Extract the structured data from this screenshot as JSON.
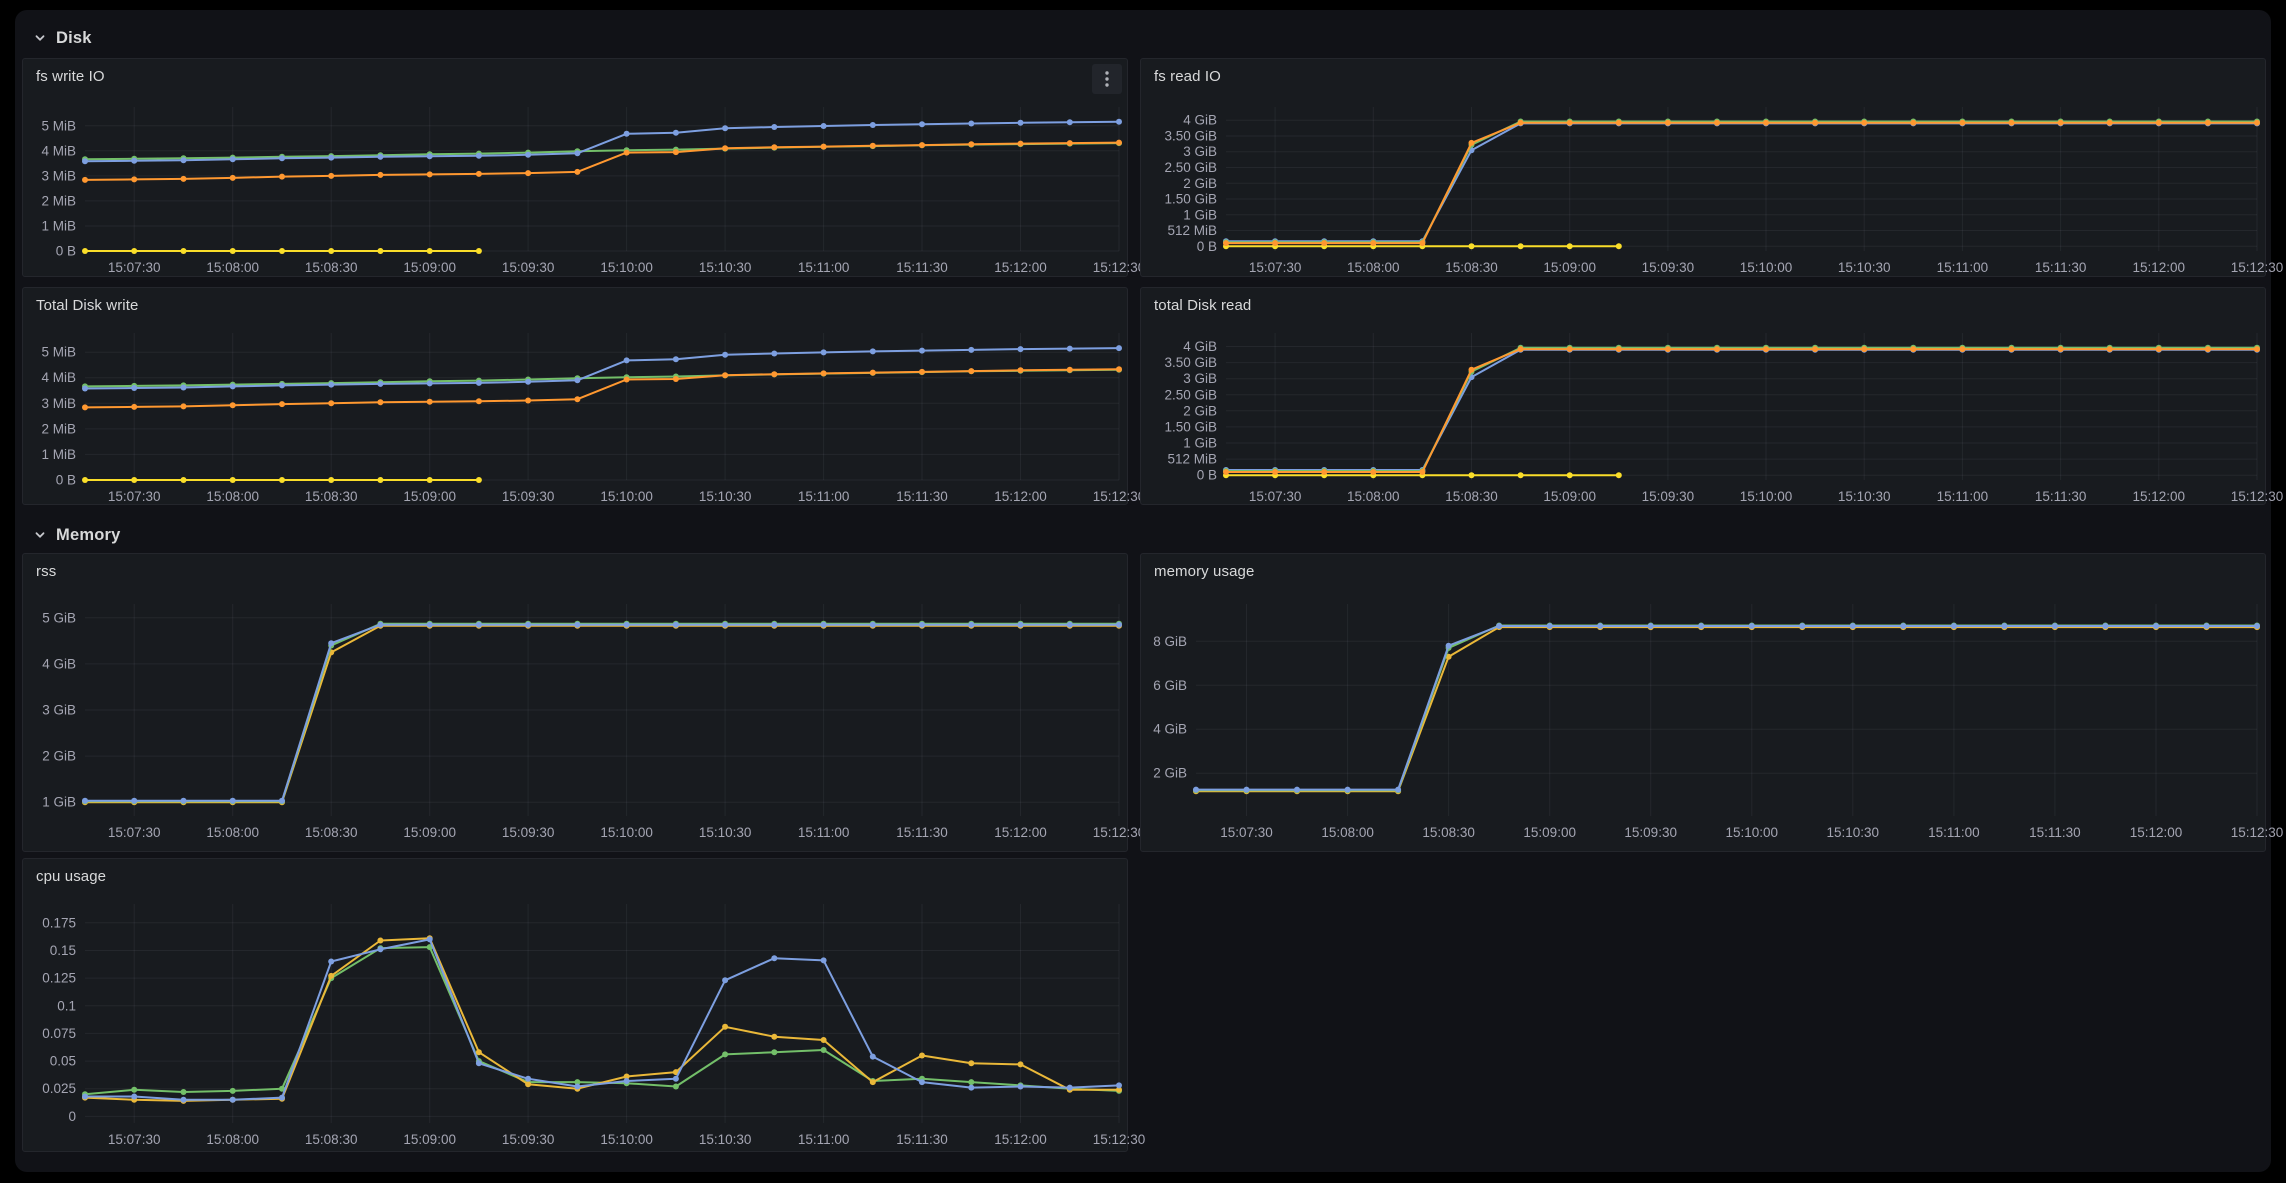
{
  "rows": [
    {
      "label": "Disk"
    },
    {
      "label": "Memory"
    }
  ],
  "colors": {
    "background": "#000000",
    "canvas": "#111217",
    "panel_background": "#181B1F",
    "panel_border": "#24262C",
    "green": "#73BF69",
    "yellow_bright": "#FADE2A",
    "yellow_gold": "#EAB839",
    "blue": "#7D9FE0",
    "orange": "#FF9830"
  },
  "chart_data": {
    "type": "line",
    "x_axis_note": "time of day, points every 15s",
    "x_seconds": [
      435,
      450,
      465,
      480,
      495,
      510,
      525,
      540,
      555,
      570,
      585,
      600,
      615,
      630,
      645,
      660,
      675,
      690,
      705,
      720,
      735,
      750
    ],
    "x_tick_seconds": [
      450,
      480,
      510,
      540,
      570,
      600,
      630,
      660,
      690,
      720,
      750
    ],
    "x_tick_labels": [
      "15:07:30",
      "15:08:00",
      "15:08:30",
      "15:09:00",
      "15:09:30",
      "15:10:00",
      "15:10:30",
      "15:11:00",
      "15:11:30",
      "15:12:00",
      "15:12:30"
    ],
    "charts": [
      {
        "id": "fs_write_io",
        "title": "fs write IO",
        "unit": "MiB",
        "ylim": [
          0,
          5.75
        ],
        "y_ticks": [
          {
            "v": 0,
            "label": "0 B"
          },
          {
            "v": 1,
            "label": "1 MiB"
          },
          {
            "v": 2,
            "label": "2 MiB"
          },
          {
            "v": 3,
            "label": "3 MiB"
          },
          {
            "v": 4,
            "label": "4 MiB"
          },
          {
            "v": 5,
            "label": "5 MiB"
          }
        ],
        "series": [
          {
            "name": "yellow",
            "color": "#FADE2A",
            "values": [
              0,
              0,
              0,
              0,
              0,
              0,
              0,
              0,
              0
            ]
          },
          {
            "name": "green",
            "color": "#73BF69",
            "values": [
              3.66,
              3.68,
              3.7,
              3.73,
              3.76,
              3.79,
              3.82,
              3.86,
              3.89,
              3.93,
              3.98,
              4.02,
              4.05,
              4.09,
              4.13,
              4.16,
              4.19,
              4.22,
              4.25,
              4.27,
              4.29,
              4.31
            ]
          },
          {
            "name": "blue",
            "color": "#7D9FE0",
            "values": [
              3.58,
              3.6,
              3.62,
              3.66,
              3.7,
              3.73,
              3.76,
              3.78,
              3.8,
              3.84,
              3.9,
              4.68,
              4.72,
              4.9,
              4.95,
              4.99,
              5.03,
              5.06,
              5.09,
              5.12,
              5.14,
              5.16
            ]
          },
          {
            "name": "orange",
            "color": "#FF9830",
            "values": [
              2.84,
              2.86,
              2.88,
              2.92,
              2.97,
              3.0,
              3.04,
              3.06,
              3.08,
              3.11,
              3.16,
              3.93,
              3.95,
              4.1,
              4.14,
              4.17,
              4.2,
              4.23,
              4.26,
              4.29,
              4.31,
              4.33
            ]
          }
        ]
      },
      {
        "id": "fs_read_io",
        "title": "fs read IO",
        "unit": "GiB",
        "ylim": [
          -0.15,
          4.42
        ],
        "y_ticks": [
          {
            "v": 0,
            "label": "0 B"
          },
          {
            "v": 0.5,
            "label": "512 MiB"
          },
          {
            "v": 1,
            "label": "1 GiB"
          },
          {
            "v": 1.5,
            "label": "1.50 GiB"
          },
          {
            "v": 2,
            "label": "2 GiB"
          },
          {
            "v": 2.5,
            "label": "2.50 GiB"
          },
          {
            "v": 3,
            "label": "3 GiB"
          },
          {
            "v": 3.5,
            "label": "3.50 GiB"
          },
          {
            "v": 4,
            "label": "4 GiB"
          }
        ],
        "series": [
          {
            "name": "yellow",
            "color": "#FADE2A",
            "values": [
              0,
              0,
              0,
              0,
              0,
              0,
              0,
              0,
              0
            ]
          },
          {
            "name": "blue",
            "color": "#7D9FE0",
            "values": [
              0.16,
              0.16,
              0.16,
              0.16,
              0.16,
              3.05,
              3.9,
              3.9,
              3.9,
              3.9,
              3.9,
              3.9,
              3.9,
              3.9,
              3.9,
              3.9,
              3.9,
              3.9,
              3.9,
              3.9,
              3.9,
              3.9
            ]
          },
          {
            "name": "green",
            "color": "#73BF69",
            "values": [
              0.13,
              0.13,
              0.13,
              0.13,
              0.13,
              3.22,
              3.96,
              3.96,
              3.96,
              3.96,
              3.96,
              3.96,
              3.96,
              3.96,
              3.96,
              3.96,
              3.96,
              3.96,
              3.96,
              3.96,
              3.96,
              3.96
            ]
          },
          {
            "name": "orange",
            "color": "#FF9830",
            "values": [
              0.1,
              0.1,
              0.1,
              0.1,
              0.1,
              3.28,
              3.92,
              3.92,
              3.92,
              3.92,
              3.92,
              3.92,
              3.92,
              3.92,
              3.92,
              3.92,
              3.92,
              3.92,
              3.92,
              3.92,
              3.92,
              3.92
            ]
          }
        ]
      },
      {
        "id": "total_disk_write",
        "title": "Total Disk write",
        "unit": "MiB",
        "ylim": [
          0,
          5.75
        ],
        "y_ticks": [
          {
            "v": 0,
            "label": "0 B"
          },
          {
            "v": 1,
            "label": "1 MiB"
          },
          {
            "v": 2,
            "label": "2 MiB"
          },
          {
            "v": 3,
            "label": "3 MiB"
          },
          {
            "v": 4,
            "label": "4 MiB"
          },
          {
            "v": 5,
            "label": "5 MiB"
          }
        ],
        "series": [
          {
            "name": "yellow",
            "color": "#FADE2A",
            "values": [
              0,
              0,
              0,
              0,
              0,
              0,
              0,
              0,
              0
            ]
          },
          {
            "name": "green",
            "color": "#73BF69",
            "values": [
              3.66,
              3.68,
              3.7,
              3.73,
              3.76,
              3.79,
              3.82,
              3.86,
              3.89,
              3.93,
              3.98,
              4.02,
              4.05,
              4.09,
              4.13,
              4.16,
              4.19,
              4.22,
              4.25,
              4.27,
              4.29,
              4.31
            ]
          },
          {
            "name": "blue",
            "color": "#7D9FE0",
            "values": [
              3.58,
              3.6,
              3.62,
              3.66,
              3.7,
              3.73,
              3.76,
              3.78,
              3.8,
              3.84,
              3.9,
              4.68,
              4.72,
              4.9,
              4.95,
              4.99,
              5.03,
              5.06,
              5.09,
              5.12,
              5.14,
              5.16
            ]
          },
          {
            "name": "orange",
            "color": "#FF9830",
            "values": [
              2.84,
              2.86,
              2.88,
              2.92,
              2.97,
              3.0,
              3.04,
              3.06,
              3.08,
              3.11,
              3.16,
              3.93,
              3.95,
              4.1,
              4.14,
              4.17,
              4.2,
              4.23,
              4.26,
              4.29,
              4.31,
              4.33
            ]
          }
        ]
      },
      {
        "id": "total_disk_read",
        "title": "total Disk read",
        "unit": "GiB",
        "ylim": [
          -0.15,
          4.42
        ],
        "y_ticks": [
          {
            "v": 0,
            "label": "0 B"
          },
          {
            "v": 0.5,
            "label": "512 MiB"
          },
          {
            "v": 1,
            "label": "1 GiB"
          },
          {
            "v": 1.5,
            "label": "1.50 GiB"
          },
          {
            "v": 2,
            "label": "2 GiB"
          },
          {
            "v": 2.5,
            "label": "2.50 GiB"
          },
          {
            "v": 3,
            "label": "3 GiB"
          },
          {
            "v": 3.5,
            "label": "3.50 GiB"
          },
          {
            "v": 4,
            "label": "4 GiB"
          }
        ],
        "series": [
          {
            "name": "yellow",
            "color": "#FADE2A",
            "values": [
              0,
              0,
              0,
              0,
              0,
              0,
              0,
              0,
              0
            ]
          },
          {
            "name": "blue",
            "color": "#7D9FE0",
            "values": [
              0.16,
              0.16,
              0.16,
              0.16,
              0.16,
              3.05,
              3.9,
              3.9,
              3.9,
              3.9,
              3.9,
              3.9,
              3.9,
              3.9,
              3.9,
              3.9,
              3.9,
              3.9,
              3.9,
              3.9,
              3.9,
              3.9
            ]
          },
          {
            "name": "green",
            "color": "#73BF69",
            "values": [
              0.13,
              0.13,
              0.13,
              0.13,
              0.13,
              3.22,
              3.96,
              3.96,
              3.96,
              3.96,
              3.96,
              3.96,
              3.96,
              3.96,
              3.96,
              3.96,
              3.96,
              3.96,
              3.96,
              3.96,
              3.96,
              3.96
            ]
          },
          {
            "name": "orange",
            "color": "#FF9830",
            "values": [
              0.1,
              0.1,
              0.1,
              0.1,
              0.1,
              3.28,
              3.92,
              3.92,
              3.92,
              3.92,
              3.92,
              3.92,
              3.92,
              3.92,
              3.92,
              3.92,
              3.92,
              3.92,
              3.92,
              3.92,
              3.92,
              3.92
            ]
          }
        ]
      },
      {
        "id": "rss",
        "title": "rss",
        "unit": "GiB",
        "ylim": [
          0.7,
          5.3
        ],
        "y_ticks": [
          {
            "v": 1,
            "label": "1 GiB"
          },
          {
            "v": 2,
            "label": "2 GiB"
          },
          {
            "v": 3,
            "label": "3 GiB"
          },
          {
            "v": 4,
            "label": "4 GiB"
          },
          {
            "v": 5,
            "label": "5 GiB"
          }
        ],
        "series": [
          {
            "name": "yellow",
            "color": "#EAB839",
            "values": [
              1.0,
              1.0,
              1.0,
              1.0,
              1.0,
              4.25,
              4.83,
              4.83,
              4.83,
              4.83,
              4.83,
              4.83,
              4.83,
              4.83,
              4.83,
              4.83,
              4.83,
              4.83,
              4.83,
              4.83,
              4.83,
              4.83
            ]
          },
          {
            "name": "green",
            "color": "#73BF69",
            "values": [
              1.02,
              1.02,
              1.02,
              1.02,
              1.02,
              4.4,
              4.87,
              4.87,
              4.87,
              4.87,
              4.87,
              4.87,
              4.87,
              4.87,
              4.87,
              4.87,
              4.87,
              4.87,
              4.87,
              4.87,
              4.87,
              4.87
            ]
          },
          {
            "name": "blue",
            "color": "#7D9FE0",
            "values": [
              1.03,
              1.03,
              1.03,
              1.03,
              1.03,
              4.45,
              4.85,
              4.85,
              4.85,
              4.85,
              4.85,
              4.85,
              4.85,
              4.85,
              4.85,
              4.85,
              4.85,
              4.85,
              4.85,
              4.85,
              4.85,
              4.85
            ]
          }
        ]
      },
      {
        "id": "memory_usage",
        "title": "memory usage",
        "unit": "GiB",
        "ylim": [
          0.05,
          9.7
        ],
        "y_ticks": [
          {
            "v": 2,
            "label": "2 GiB"
          },
          {
            "v": 4,
            "label": "4 GiB"
          },
          {
            "v": 6,
            "label": "6 GiB"
          },
          {
            "v": 8,
            "label": "8 GiB"
          }
        ],
        "series": [
          {
            "name": "yellow",
            "color": "#EAB839",
            "values": [
              1.18,
              1.18,
              1.18,
              1.18,
              1.18,
              7.3,
              8.65,
              8.65,
              8.65,
              8.65,
              8.65,
              8.65,
              8.65,
              8.65,
              8.65,
              8.65,
              8.65,
              8.65,
              8.65,
              8.65,
              8.65,
              8.65
            ]
          },
          {
            "name": "green",
            "color": "#73BF69",
            "values": [
              1.22,
              1.22,
              1.22,
              1.22,
              1.22,
              7.7,
              8.72,
              8.72,
              8.72,
              8.72,
              8.72,
              8.72,
              8.72,
              8.72,
              8.72,
              8.72,
              8.72,
              8.72,
              8.72,
              8.72,
              8.72,
              8.72
            ]
          },
          {
            "name": "blue",
            "color": "#7D9FE0",
            "values": [
              1.25,
              1.25,
              1.25,
              1.25,
              1.25,
              7.8,
              8.7,
              8.7,
              8.7,
              8.7,
              8.7,
              8.7,
              8.7,
              8.7,
              8.7,
              8.7,
              8.7,
              8.7,
              8.7,
              8.7,
              8.7,
              8.7
            ]
          }
        ]
      },
      {
        "id": "cpu_usage",
        "title": "cpu usage",
        "unit": "",
        "ylim": [
          -0.006,
          0.192
        ],
        "y_ticks": [
          {
            "v": 0,
            "label": "0"
          },
          {
            "v": 0.025,
            "label": "0.025"
          },
          {
            "v": 0.05,
            "label": "0.05"
          },
          {
            "v": 0.075,
            "label": "0.075"
          },
          {
            "v": 0.1,
            "label": "0.1"
          },
          {
            "v": 0.125,
            "label": "0.125"
          },
          {
            "v": 0.15,
            "label": "0.15"
          },
          {
            "v": 0.175,
            "label": "0.175"
          }
        ],
        "series": [
          {
            "name": "green",
            "color": "#73BF69",
            "values": [
              0.02,
              0.024,
              0.022,
              0.023,
              0.025,
              0.125,
              0.152,
              0.153,
              0.05,
              0.031,
              0.031,
              0.03,
              0.027,
              0.056,
              0.058,
              0.06,
              0.032,
              0.034,
              0.031,
              0.028,
              0.025,
              0.023
            ]
          },
          {
            "name": "yellow",
            "color": "#EAB839",
            "values": [
              0.017,
              0.015,
              0.014,
              0.015,
              0.016,
              0.127,
              0.159,
              0.161,
              0.058,
              0.029,
              0.025,
              0.036,
              0.04,
              0.081,
              0.072,
              0.069,
              0.031,
              0.055,
              0.048,
              0.047,
              0.024,
              0.024
            ]
          },
          {
            "name": "blue",
            "color": "#7D9FE0",
            "values": [
              0.018,
              0.018,
              0.015,
              0.015,
              0.017,
              0.14,
              0.151,
              0.16,
              0.048,
              0.034,
              0.027,
              0.032,
              0.034,
              0.123,
              0.143,
              0.141,
              0.054,
              0.031,
              0.026,
              0.027,
              0.026,
              0.028
            ]
          }
        ]
      }
    ]
  }
}
